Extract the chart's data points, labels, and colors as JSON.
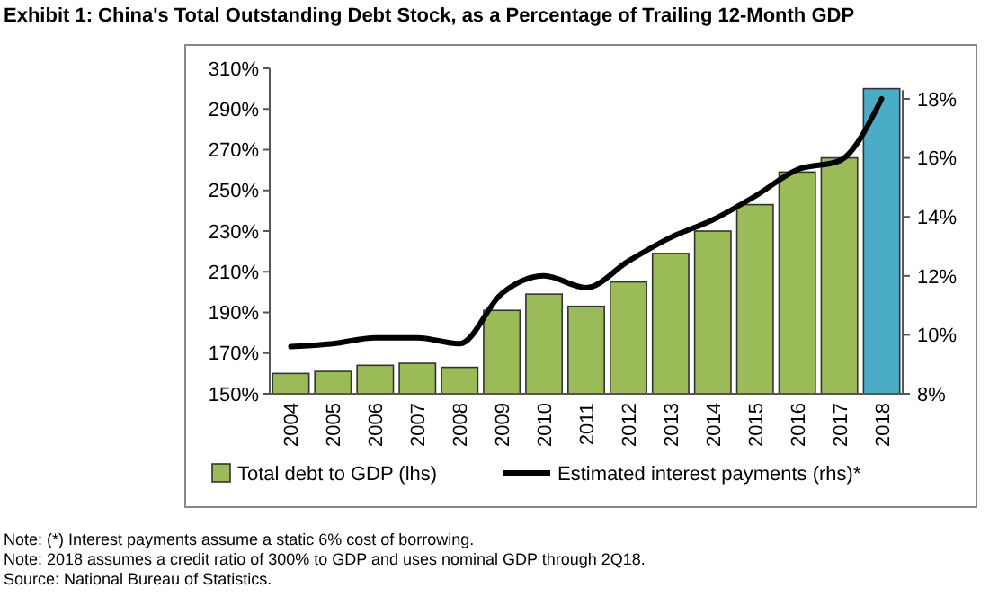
{
  "chart_data": {
    "type": "bar",
    "title": "Exhibit 1: China's Total Outstanding Debt Stock, as a Percentage of Trailing 12-Month GDP",
    "categories": [
      "2004",
      "2005",
      "2006",
      "2007",
      "2008",
      "2009",
      "2010",
      "2011",
      "2012",
      "2013",
      "2014",
      "2015",
      "2016",
      "2017",
      "2018"
    ],
    "series": [
      {
        "name": "Total debt to GDP (lhs)",
        "color": "#9bbb59",
        "colors": [
          "#9bbb59",
          "#9bbb59",
          "#9bbb59",
          "#9bbb59",
          "#9bbb59",
          "#9bbb59",
          "#9bbb59",
          "#9bbb59",
          "#9bbb59",
          "#9bbb59",
          "#9bbb59",
          "#9bbb59",
          "#9bbb59",
          "#9bbb59",
          "#4bacc6"
        ],
        "values": [
          160,
          161,
          164,
          165,
          163,
          191,
          199,
          193,
          205,
          219,
          230,
          243,
          259,
          266,
          300
        ]
      },
      {
        "name": "Estimated interest payments (rhs)*",
        "type": "line",
        "axis": "y2",
        "color": "#000000",
        "values": [
          9.6,
          9.7,
          9.9,
          9.9,
          9.7,
          11.4,
          12.0,
          11.6,
          12.5,
          13.3,
          13.9,
          14.7,
          15.6,
          15.9,
          18.0
        ]
      }
    ],
    "ylim": [
      150,
      310
    ],
    "yticks": [
      {
        "value": 150,
        "label": "150%"
      },
      {
        "value": 170,
        "label": "170%"
      },
      {
        "value": 190,
        "label": "190%"
      },
      {
        "value": 210,
        "label": "210%"
      },
      {
        "value": 230,
        "label": "230%"
      },
      {
        "value": 250,
        "label": "250%"
      },
      {
        "value": 270,
        "label": "270%"
      },
      {
        "value": 290,
        "label": "290%"
      },
      {
        "value": 310,
        "label": "310%"
      }
    ],
    "y2lim": [
      8,
      18.3
    ],
    "y2ticks": [
      {
        "value": 8,
        "label": "8%"
      },
      {
        "value": 10,
        "label": "10%"
      },
      {
        "value": 12,
        "label": "12%"
      },
      {
        "value": 14,
        "label": "14%"
      },
      {
        "value": 16,
        "label": "16%"
      },
      {
        "value": 18,
        "label": "18%"
      }
    ],
    "legend": "bottom",
    "annotations": [
      "Note: (*) Interest payments assume a static 6% cost of borrowing.",
      "Note: 2018 assumes a credit ratio of 300% to GDP and uses nominal GDP through 2Q18.",
      "Source: National Bureau of Statistics."
    ]
  }
}
